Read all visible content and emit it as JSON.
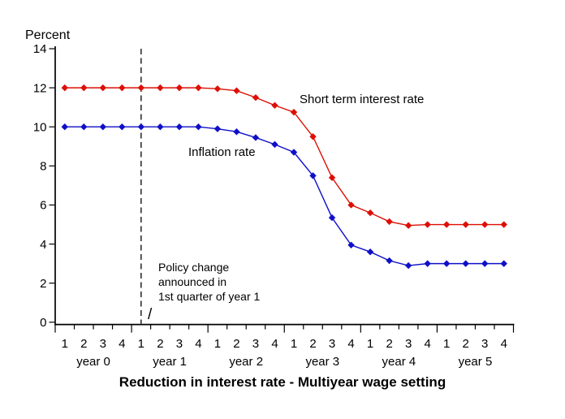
{
  "chart_data": {
    "type": "line",
    "title": "Reduction in interest rate - Multiyear wage setting",
    "y_axis_title": "Percent",
    "ylim": [
      0,
      14
    ],
    "y_ticks": [
      0,
      2,
      4,
      6,
      8,
      10,
      12,
      14
    ],
    "grid": false,
    "legend_position": "inline-labels",
    "x_years": [
      "year 0",
      "year 1",
      "year 2",
      "year 3",
      "year 4",
      "year 5"
    ],
    "x_quarter_labels": [
      "1",
      "2",
      "3",
      "4"
    ],
    "axis_color": "#000000",
    "policy_change_line": {
      "at": "1st quarter of year 1",
      "year_index": 1,
      "quarter_index": 0,
      "style": "dashed",
      "color": "#000000"
    },
    "annotation": {
      "lines": [
        "Policy change",
        "announced in",
        "1st quarter of year 1"
      ],
      "pointer_glyph": "/"
    },
    "series": [
      {
        "name": "Short term interest rate",
        "color": "#dd0f04",
        "marker": "diamond",
        "values": [
          12,
          12,
          12,
          12,
          12,
          12,
          12,
          12,
          11.95,
          11.85,
          11.5,
          11.1,
          10.75,
          9.5,
          7.4,
          6.0,
          5.6,
          5.15,
          4.95,
          5.0,
          5.0,
          5.0,
          5.0,
          5.0
        ]
      },
      {
        "name": "Inflation rate",
        "color": "#0f0fc8",
        "marker": "diamond",
        "values": [
          10,
          10,
          10,
          10,
          10,
          10,
          10,
          10,
          9.9,
          9.75,
          9.45,
          9.1,
          8.7,
          7.5,
          5.35,
          3.95,
          3.6,
          3.15,
          2.9,
          3.0,
          3.0,
          3.0,
          3.0,
          3.0
        ]
      }
    ]
  }
}
